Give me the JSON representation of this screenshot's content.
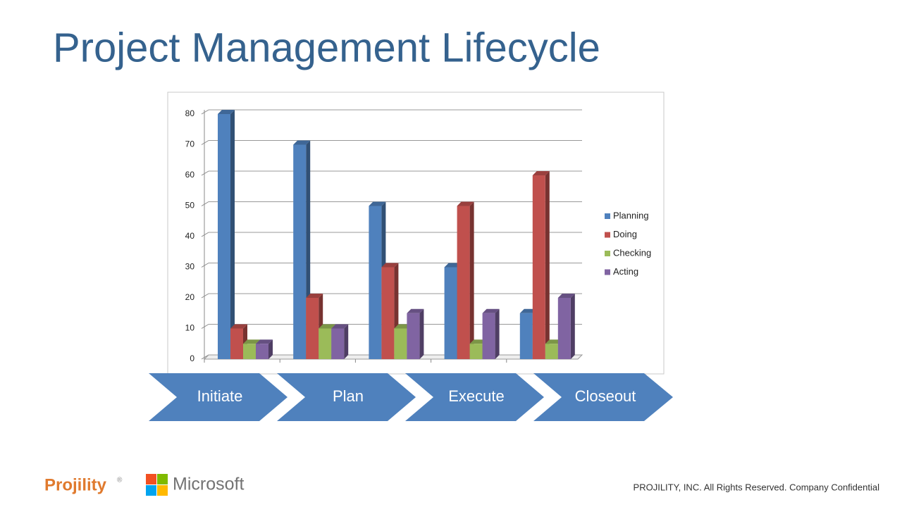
{
  "title": "Project Management Lifecycle",
  "chart_data": {
    "type": "bar3d",
    "categories": [
      null,
      null,
      null,
      null,
      null
    ],
    "series": [
      {
        "name": "Planning",
        "color": "#4f81bd",
        "values": [
          80,
          70,
          50,
          30,
          15
        ]
      },
      {
        "name": "Doing",
        "color": "#c0504d",
        "values": [
          10,
          20,
          30,
          50,
          60
        ]
      },
      {
        "name": "Checking",
        "color": "#9bbb59",
        "values": [
          5,
          10,
          10,
          5,
          5
        ]
      },
      {
        "name": "Acting",
        "color": "#8064a2",
        "values": [
          5,
          10,
          15,
          15,
          20
        ]
      }
    ],
    "ylim": [
      0,
      80
    ],
    "yticks": [
      0,
      10,
      20,
      30,
      40,
      50,
      60,
      70,
      80
    ],
    "grid": true,
    "legend": "right"
  },
  "phases": [
    "Initiate",
    "Plan",
    "Execute",
    "Closeout"
  ],
  "logos": {
    "projility": "Projility",
    "registered": "®",
    "microsoft": "Microsoft"
  },
  "footer": "PROJILITY, INC. All Rights Reserved. Company Confidential"
}
